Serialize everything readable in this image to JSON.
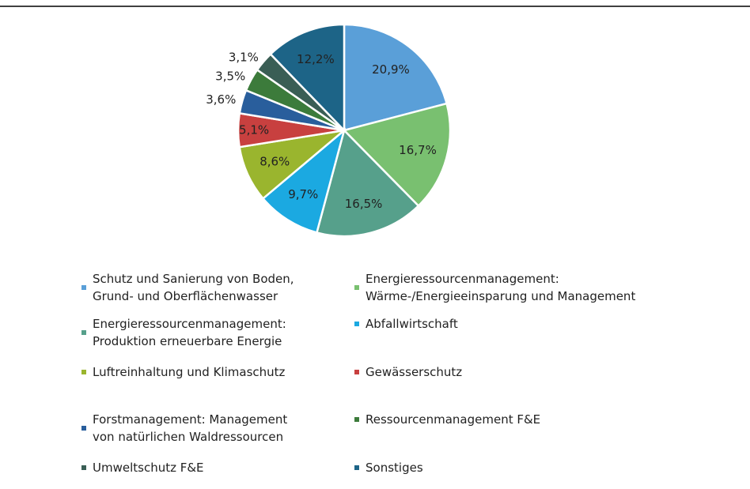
{
  "chart_data": {
    "type": "pie",
    "categories": [
      "Schutz und Sanierung von Boden,\nGrund- und Oberflächenwasser",
      "Energieressourcenmanagement:\nWärme-/Energieeinsparung und Management",
      "Energieressourcenmanagement:\nProduktion erneuerbare Energie",
      "Abfallwirtschaft",
      "Luftreinhaltung und Klimaschutz",
      "Gewässerschutz",
      "Forstmanagement: Management\nvon natürlichen Waldressourcen",
      "Ressourcenmanagement F&E",
      "Umweltschutz F&E",
      "Sonstiges"
    ],
    "values": [
      20.9,
      16.7,
      16.5,
      9.7,
      8.6,
      5.1,
      3.6,
      3.5,
      3.1,
      12.2
    ],
    "value_labels": [
      "20,9%",
      "16,7%",
      "16,5%",
      "9,7%",
      "8,6%",
      "5,1%",
      "3,6%",
      "3,5%",
      "3,1%",
      "12,2%"
    ],
    "colors": [
      "#5a9fd8",
      "#79c070",
      "#56a08b",
      "#1ba9e1",
      "#9ab52e",
      "#c8403f",
      "#295e9c",
      "#3c7b3b",
      "#3a5e55",
      "#1d6487"
    ]
  }
}
